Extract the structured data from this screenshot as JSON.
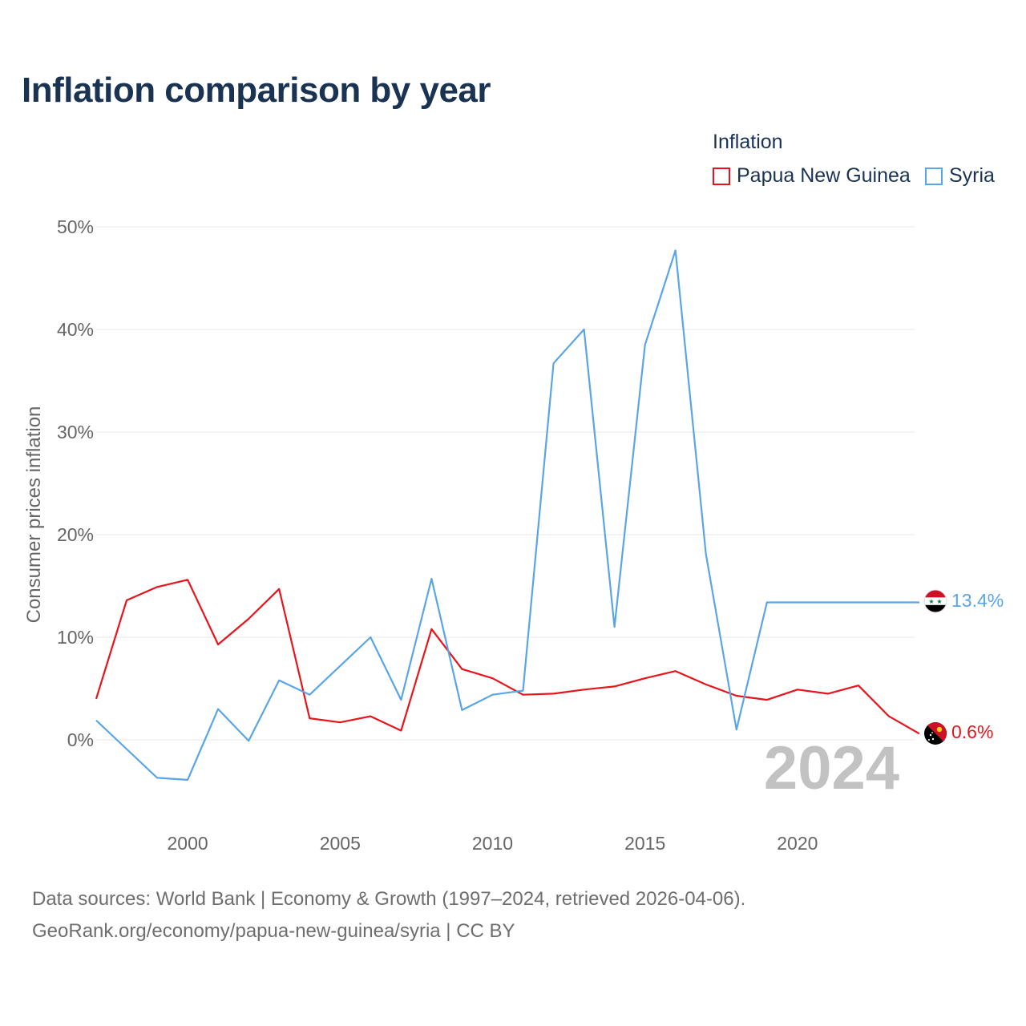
{
  "title": "Inflation comparison by year",
  "legend": {
    "title": "Inflation",
    "items": [
      {
        "label": "Papua New Guinea",
        "color": "#e8141b"
      },
      {
        "label": "Syria",
        "color": "#5aa5e6"
      }
    ]
  },
  "chart_data": {
    "type": "line",
    "ylabel": "Consumer prices inflation",
    "xlabel": "",
    "ylim": [
      -7,
      50
    ],
    "xlim": [
      1997,
      2024
    ],
    "yticks": [
      0,
      10,
      20,
      30,
      40,
      50
    ],
    "ytick_labels": [
      "0%",
      "10%",
      "20%",
      "30%",
      "40%",
      "50%"
    ],
    "xticks": [
      2000,
      2005,
      2010,
      2015,
      2020
    ],
    "xtick_labels": [
      "2000",
      "2005",
      "2010",
      "2015",
      "2020"
    ],
    "x": [
      1997,
      1998,
      1999,
      2000,
      2001,
      2002,
      2003,
      2004,
      2005,
      2006,
      2007,
      2008,
      2009,
      2010,
      2011,
      2012,
      2013,
      2014,
      2015,
      2016,
      2017,
      2018,
      2019,
      2020,
      2021,
      2022,
      2023,
      2024
    ],
    "series": [
      {
        "name": "Papua New Guinea",
        "color": "#e8141b",
        "values": [
          4.0,
          13.6,
          14.9,
          15.6,
          9.3,
          11.8,
          14.7,
          2.1,
          1.7,
          2.3,
          0.9,
          10.8,
          6.9,
          6.0,
          4.4,
          4.5,
          4.9,
          5.2,
          6.0,
          6.7,
          5.4,
          4.3,
          3.9,
          4.9,
          4.5,
          5.3,
          2.3,
          0.6
        ]
      },
      {
        "name": "Syria",
        "color": "#5aa5e6",
        "values": [
          1.9,
          -0.9,
          -3.7,
          -3.9,
          3.0,
          -0.1,
          5.8,
          4.4,
          7.2,
          10.0,
          3.9,
          15.7,
          2.9,
          4.4,
          4.8,
          36.7,
          40.0,
          11.0,
          38.5,
          47.7,
          18.1,
          1.0,
          13.4,
          13.4,
          13.4,
          13.4,
          13.4,
          13.4
        ]
      }
    ],
    "end_labels": [
      {
        "series": "Syria",
        "text": "13.4%",
        "value": 13.4
      },
      {
        "series": "Papua New Guinea",
        "text": "0.6%",
        "value": 0.6
      }
    ],
    "year_watermark": "2024",
    "grid": true
  },
  "footer": {
    "line1": "Data sources: World Bank | Economy & Growth (1997–2024, retrieved 2026-04-06).",
    "line2": "GeoRank.org/economy/papua-new-guinea/syria | CC BY"
  }
}
